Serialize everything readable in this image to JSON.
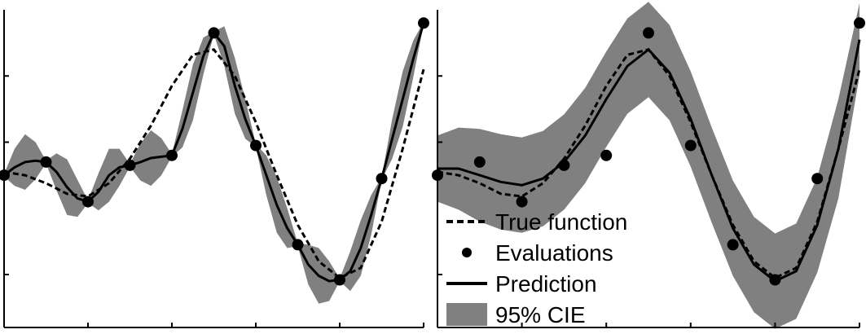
{
  "colors": {
    "band": "#808080",
    "line": "#000000",
    "axis": "#000000",
    "background": "#ffffff"
  },
  "chart_data": [
    {
      "type": "line",
      "title": "",
      "xlabel": "",
      "ylabel": "",
      "xlim": [
        0,
        10
      ],
      "ylim": [
        -2.3,
        2.5
      ],
      "grid": false,
      "xticks": [
        0,
        2,
        4,
        6,
        8,
        10
      ],
      "yticks": [
        -1.5,
        0,
        0.5,
        1.5
      ],
      "series": [
        {
          "name": "True function",
          "style": "dashed",
          "x": [
            0,
            0.5,
            1,
            1.5,
            2,
            2.5,
            3,
            3.5,
            4,
            4.5,
            5,
            5.5,
            6,
            6.5,
            7,
            7.5,
            8,
            8.5,
            9,
            9.5,
            10
          ],
          "y": [
            0.05,
            0.0,
            -0.12,
            -0.28,
            -0.32,
            -0.12,
            0.25,
            0.75,
            1.35,
            1.82,
            1.9,
            1.5,
            0.8,
            0.0,
            -0.75,
            -1.3,
            -1.55,
            -1.4,
            -0.7,
            0.4,
            1.6
          ]
        },
        {
          "name": "Evaluations",
          "style": "markers",
          "x": [
            0,
            1,
            2,
            3,
            4,
            5,
            6,
            7,
            8,
            9,
            10
          ],
          "y": [
            0.0,
            0.2,
            -0.4,
            0.15,
            0.3,
            2.15,
            0.45,
            -1.05,
            -1.58,
            -0.05,
            2.3
          ]
        }
      ],
      "prediction": {
        "name": "Prediction",
        "x": [
          0,
          0.25,
          0.5,
          0.75,
          1,
          1.25,
          1.5,
          1.75,
          2,
          2.25,
          2.5,
          2.75,
          3,
          3.25,
          3.5,
          3.75,
          4,
          4.25,
          4.5,
          4.75,
          5,
          5.25,
          5.5,
          5.75,
          6,
          6.25,
          6.5,
          6.75,
          7,
          7.25,
          7.5,
          7.75,
          8,
          8.25,
          8.5,
          8.75,
          9,
          9.25,
          9.5,
          9.75,
          10
        ],
        "y": [
          0.0,
          0.12,
          0.2,
          0.22,
          0.2,
          0.05,
          -0.18,
          -0.35,
          -0.4,
          -0.25,
          0.0,
          0.12,
          0.15,
          0.2,
          0.26,
          0.28,
          0.3,
          0.7,
          1.25,
          1.8,
          2.15,
          1.95,
          1.35,
          0.85,
          0.45,
          0.0,
          -0.45,
          -0.8,
          -1.05,
          -1.35,
          -1.52,
          -1.6,
          -1.58,
          -1.45,
          -1.1,
          -0.6,
          -0.05,
          0.55,
          1.15,
          1.75,
          2.3
        ],
        "ci_half_width": [
          0.02,
          0.28,
          0.42,
          0.28,
          0.02,
          0.28,
          0.42,
          0.28,
          0.02,
          0.28,
          0.4,
          0.28,
          0.02,
          0.28,
          0.42,
          0.28,
          0.02,
          0.28,
          0.42,
          0.28,
          0.02,
          0.3,
          0.42,
          0.3,
          0.02,
          0.3,
          0.42,
          0.3,
          0.02,
          0.3,
          0.42,
          0.3,
          0.02,
          0.3,
          0.42,
          0.3,
          0.02,
          0.3,
          0.42,
          0.28,
          0.02
        ]
      }
    },
    {
      "type": "line",
      "title": "",
      "xlabel": "",
      "ylabel": "",
      "xlim": [
        0,
        10
      ],
      "ylim": [
        -2.3,
        2.5
      ],
      "grid": false,
      "xticks": [
        0,
        2,
        4,
        6,
        8,
        10
      ],
      "yticks": [
        -1.5,
        0,
        0.5,
        1.5
      ],
      "legend": {
        "placement": "bottom-center",
        "entries": [
          {
            "label": "True function",
            "symbol": "dashed"
          },
          {
            "label": "Evaluations",
            "symbol": "marker"
          },
          {
            "label": "Prediction",
            "symbol": "line"
          },
          {
            "label": "95% CIE",
            "symbol": "band"
          }
        ]
      },
      "series": [
        {
          "name": "True function",
          "style": "dashed",
          "x": [
            0,
            0.5,
            1,
            1.5,
            2,
            2.5,
            3,
            3.5,
            4,
            4.5,
            5,
            5.5,
            6,
            6.5,
            7,
            7.5,
            8,
            8.5,
            9,
            9.5,
            10
          ],
          "y": [
            0.05,
            0.0,
            -0.12,
            -0.28,
            -0.32,
            -0.12,
            0.25,
            0.75,
            1.35,
            1.82,
            1.9,
            1.5,
            0.8,
            0.0,
            -0.75,
            -1.3,
            -1.55,
            -1.4,
            -0.7,
            0.4,
            1.6
          ]
        },
        {
          "name": "Evaluations",
          "style": "markers",
          "x": [
            0,
            1,
            2,
            3,
            4,
            5,
            6,
            7,
            8,
            9,
            10
          ],
          "y": [
            0.0,
            0.2,
            -0.4,
            0.15,
            0.3,
            2.15,
            0.45,
            -1.05,
            -1.58,
            -0.05,
            2.3
          ]
        }
      ],
      "prediction": {
        "name": "Prediction",
        "x": [
          0,
          0.5,
          1,
          1.5,
          2,
          2.5,
          3,
          3.5,
          4,
          4.5,
          5,
          5.5,
          6,
          6.5,
          7,
          7.5,
          8,
          8.5,
          9,
          9.5,
          10
        ],
        "y": [
          0.1,
          0.1,
          0.0,
          -0.1,
          -0.15,
          -0.05,
          0.2,
          0.6,
          1.15,
          1.65,
          1.9,
          1.55,
          0.85,
          0.0,
          -0.8,
          -1.35,
          -1.6,
          -1.45,
          -0.75,
          0.4,
          2.05
        ],
        "ci_half_width": [
          0.5,
          0.62,
          0.7,
          0.72,
          0.72,
          0.72,
          0.72,
          0.72,
          0.72,
          0.72,
          0.72,
          0.72,
          0.72,
          0.72,
          0.72,
          0.72,
          0.72,
          0.72,
          0.72,
          0.75,
          0.55
        ]
      }
    }
  ]
}
